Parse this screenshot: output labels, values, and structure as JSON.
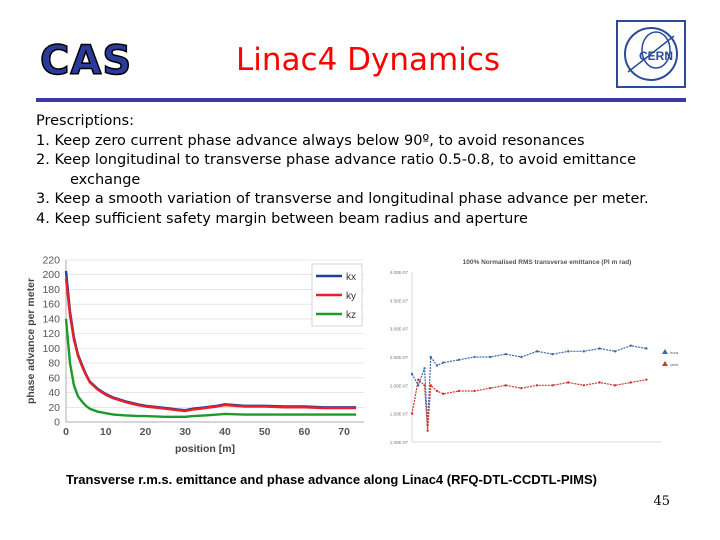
{
  "header": {
    "logo_left": "CAS",
    "title": "Linac4 Dynamics",
    "logo_right": "CERN"
  },
  "prescriptions": {
    "heading": "Prescriptions:",
    "items": [
      "1. Keep zero current phase advance always below 90º, to avoid resonances",
      "2. Keep longitudinal to transverse phase advance ratio 0.5-0.8, to avoid emittance",
      "exchange",
      "3. Keep a smooth variation of transverse and longitudinal phase advance per meter.",
      "4. Keep sufficient safety margin between beam radius and aperture"
    ]
  },
  "caption": "Transverse r.m.s. emittance and phase advance along Linac4 (RFQ-DTL-CCDTL-PIMS)",
  "page_number": "45",
  "chart_data": [
    {
      "type": "line",
      "xlabel": "position [m]",
      "ylabel": "phase advance per meter",
      "xlim": [
        0,
        75
      ],
      "ylim": [
        0,
        220
      ],
      "xticks": [
        0,
        10,
        20,
        30,
        40,
        50,
        60,
        70
      ],
      "yticks": [
        0,
        20,
        40,
        60,
        80,
        100,
        120,
        140,
        160,
        180,
        200,
        220
      ],
      "legend_position": "top-right",
      "colors": {
        "kx": "#1f3fa0",
        "ky": "#e8202a",
        "kz": "#1e9a2a"
      },
      "series": [
        {
          "name": "kx",
          "x": [
            0,
            1,
            2,
            3,
            4,
            5,
            6,
            8,
            10,
            12,
            15,
            18,
            20,
            25,
            28,
            30,
            32,
            35,
            38,
            40,
            45,
            50,
            55,
            60,
            65,
            70,
            73
          ],
          "y": [
            205,
            150,
            115,
            92,
            78,
            65,
            55,
            45,
            38,
            33,
            28,
            24,
            22,
            19,
            17,
            16,
            18,
            20,
            22,
            24,
            22,
            22,
            21,
            21,
            20,
            20,
            20
          ]
        },
        {
          "name": "ky",
          "x": [
            0,
            1,
            2,
            3,
            4,
            5,
            6,
            8,
            10,
            12,
            15,
            18,
            20,
            25,
            28,
            30,
            32,
            35,
            38,
            40,
            45,
            50,
            55,
            60,
            65,
            70,
            73
          ],
          "y": [
            195,
            145,
            112,
            90,
            76,
            64,
            54,
            44,
            37,
            32,
            27,
            23,
            21,
            18,
            16,
            15,
            17,
            19,
            21,
            23,
            21,
            21,
            20,
            20,
            19,
            19,
            19
          ]
        },
        {
          "name": "kz",
          "x": [
            0,
            1,
            2,
            3,
            4,
            5,
            6,
            8,
            10,
            12,
            15,
            18,
            20,
            25,
            28,
            30,
            32,
            35,
            38,
            40,
            45,
            50,
            55,
            60,
            65,
            70,
            73
          ],
          "y": [
            140,
            80,
            50,
            35,
            28,
            22,
            18,
            14,
            12,
            10,
            9,
            8,
            8,
            7,
            7,
            7,
            8,
            9,
            10,
            11,
            10,
            10,
            10,
            10,
            10,
            10,
            10
          ]
        }
      ]
    },
    {
      "type": "line",
      "title": "100% Normalised RMS transverse emittance (PI m rad)",
      "xlim": [
        0,
        80
      ],
      "ylim": [
        1e-07,
        4e-07
      ],
      "yticks_labels": [
        "4.00E-07",
        "3.50E-07",
        "3.00E-07",
        "2.50E-07",
        "2.00E-07",
        "1.50E-07",
        "1.00E-07"
      ],
      "xticks": [
        0,
        10,
        20,
        30,
        40,
        50,
        60,
        70,
        80
      ],
      "legend": [
        "horizontal",
        "vertical"
      ],
      "colors": {
        "horizontal": "#3a6aa8",
        "vertical": "#c83a30"
      },
      "series": [
        {
          "name": "horizontal",
          "x": [
            0,
            2,
            4,
            5,
            6,
            8,
            10,
            15,
            20,
            25,
            30,
            35,
            40,
            45,
            50,
            55,
            60,
            65,
            70,
            75
          ],
          "y": [
            2.2,
            2.0,
            2.3,
            1.3,
            2.5,
            2.35,
            2.4,
            2.45,
            2.5,
            2.5,
            2.55,
            2.5,
            2.6,
            2.55,
            2.6,
            2.6,
            2.65,
            2.6,
            2.7,
            2.65
          ]
        },
        {
          "name": "vertical",
          "x": [
            0,
            2,
            4,
            5,
            6,
            8,
            10,
            15,
            20,
            25,
            30,
            35,
            40,
            45,
            50,
            55,
            60,
            65,
            70,
            75
          ],
          "y": [
            1.5,
            2.1,
            2.0,
            1.2,
            2.0,
            1.9,
            1.85,
            1.9,
            1.9,
            1.95,
            2.0,
            1.95,
            2.0,
            2.0,
            2.05,
            2.0,
            2.05,
            2.0,
            2.05,
            2.1
          ]
        }
      ]
    }
  ]
}
